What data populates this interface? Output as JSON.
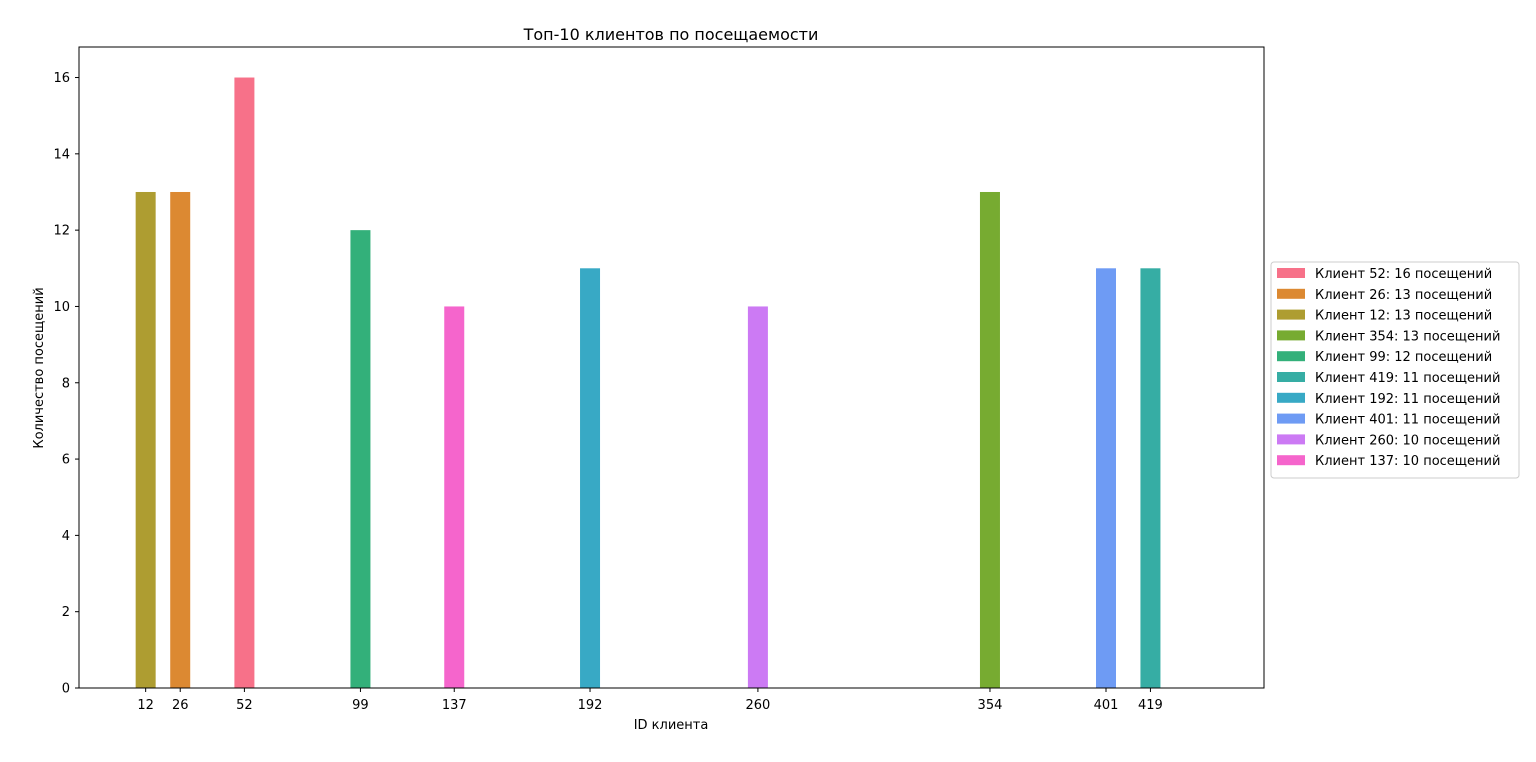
{
  "chart_data": {
    "type": "bar",
    "title": "Топ-10 клиентов по посещаемости",
    "xlabel": "ID клиента",
    "ylabel": "Количество посещений",
    "xlim": [
      -15,
      465
    ],
    "ylim": [
      0,
      16.8
    ],
    "y_ticks": [
      0,
      2,
      4,
      6,
      8,
      10,
      12,
      14,
      16
    ],
    "x_ticks": [
      12,
      26,
      52,
      99,
      137,
      192,
      260,
      354,
      401,
      419
    ],
    "grid": false,
    "legend_position": "center-right, outside plot",
    "series": [
      {
        "name": "Клиент 52: 16 посещений",
        "x": 52,
        "value": 16,
        "color": "#f77189"
      },
      {
        "name": "Клиент 26: 13 посещений",
        "x": 26,
        "value": 13,
        "color": "#dc8932"
      },
      {
        "name": "Клиент 12: 13 посещений",
        "x": 12,
        "value": 13,
        "color": "#ae9d31"
      },
      {
        "name": "Клиент 354: 13 посещений",
        "x": 354,
        "value": 13,
        "color": "#77ab31"
      },
      {
        "name": "Клиент 99: 12 посещений",
        "x": 99,
        "value": 12,
        "color": "#33b07a"
      },
      {
        "name": "Клиент 419: 11 посещений",
        "x": 419,
        "value": 11,
        "color": "#36ada4"
      },
      {
        "name": "Клиент 192: 11 посещений",
        "x": 192,
        "value": 11,
        "color": "#38a9c5"
      },
      {
        "name": "Клиент 401: 11 посещений",
        "x": 401,
        "value": 11,
        "color": "#6e9bf4"
      },
      {
        "name": "Клиент 260: 10 посещений",
        "x": 260,
        "value": 10,
        "color": "#cc7af4"
      },
      {
        "name": "Клиент 137: 10 посещений",
        "x": 137,
        "value": 10,
        "color": "#f565cc"
      }
    ]
  }
}
